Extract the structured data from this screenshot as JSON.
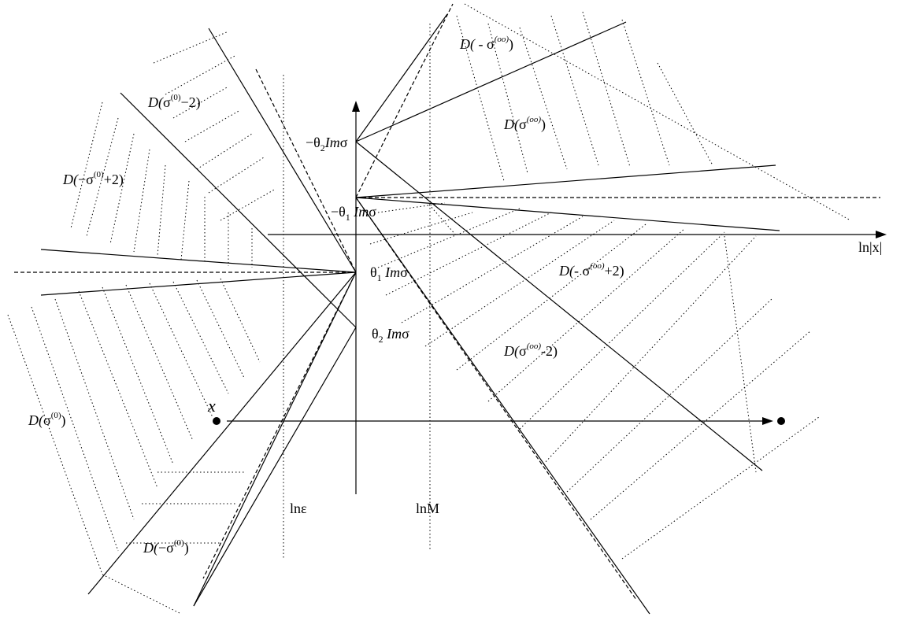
{
  "diagram": {
    "labels": {
      "D_sigma_oo_minus": {
        "d": "D(",
        "sigma": " - σ",
        "sup": "(oo)",
        "close": ")"
      },
      "D_sigma_oo": {
        "d": "D(",
        "sigma": "σ",
        "sup": "(oo)",
        "close": ")"
      },
      "D_sigma0_minus2": {
        "d": "D(",
        "sigma": "σ",
        "sup": "(0)",
        "tail": "−2)"
      },
      "D_neg_sigma0_plus2": {
        "d": "D(",
        "sigma": "−σ",
        "sup": "(0)",
        "tail": "+2)"
      },
      "D_neg_sigma_oo_plus2": {
        "d": "D(",
        "sigma": "- σ",
        "sup": "(oo)",
        "tail": "+2)"
      },
      "D_sigma_oo_minus2": {
        "d": "D(",
        "sigma": "σ",
        "sup": "(oo)",
        "tail": "-2)"
      },
      "D_sigma0": {
        "d": "D(",
        "sigma": "σ",
        "sup": "(0)",
        "close": ")"
      },
      "D_neg_sigma0": {
        "d": "D(",
        "sigma": "−σ",
        "sup": "(0)",
        "close": ")"
      },
      "neg_theta2": {
        "pre": "−θ",
        "sub": "2",
        "im": "Im",
        "s": "σ"
      },
      "neg_theta1": {
        "pre": "−θ",
        "sub": "1",
        "im": " Im",
        "s": "σ"
      },
      "theta1": {
        "pre": "θ",
        "sub": "1",
        "im": " Im",
        "s": "σ"
      },
      "theta2": {
        "pre": "θ",
        "sub": "2",
        "im": " Im",
        "s": "σ"
      },
      "axis_x": "ln|x|",
      "ln_eps": "lnε",
      "ln_M": "lnM",
      "point_x": "x"
    }
  }
}
